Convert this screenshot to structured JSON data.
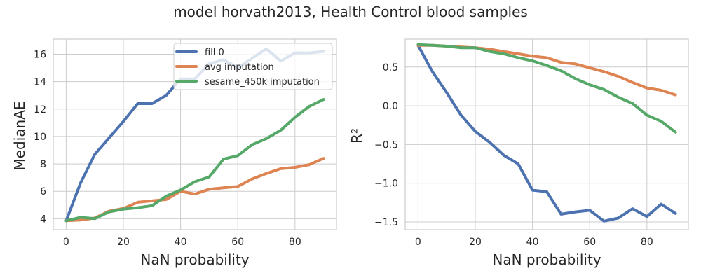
{
  "figure": {
    "title": "model horvath2013, Health Control blood samples"
  },
  "chart_data": [
    {
      "type": "line",
      "title": "",
      "xlabel": "NaN probability",
      "ylabel": "MedianAE",
      "xlim": [
        -4.5,
        94.5
      ],
      "ylim": [
        3.2,
        17.1
      ],
      "xticks": [
        0,
        20,
        40,
        60,
        80
      ],
      "yticks": [
        4,
        6,
        8,
        10,
        12,
        14,
        16
      ],
      "grid": true,
      "legend": "top-right",
      "x": [
        0,
        5,
        10,
        15,
        20,
        25,
        30,
        35,
        40,
        45,
        50,
        55,
        60,
        65,
        70,
        75,
        80,
        85,
        90
      ],
      "series": [
        {
          "name": "fill 0",
          "color": "#4c72b0",
          "values": [
            3.85,
            6.6,
            8.7,
            9.9,
            11.1,
            12.4,
            12.4,
            13.0,
            14.2,
            14.2,
            15.3,
            15.6,
            15.0,
            15.7,
            16.4,
            15.5,
            16.1,
            16.1,
            16.2
          ]
        },
        {
          "name": "avg imputation",
          "color": "#dd8452",
          "values": [
            3.85,
            3.9,
            4.05,
            4.55,
            4.75,
            5.2,
            5.3,
            5.4,
            6.0,
            5.8,
            6.15,
            6.25,
            6.35,
            6.9,
            7.3,
            7.65,
            7.75,
            7.95,
            8.4
          ]
        },
        {
          "name": "sesame_450k imputation",
          "color": "#55a868",
          "values": [
            3.85,
            4.1,
            4.0,
            4.5,
            4.7,
            4.8,
            4.95,
            5.65,
            6.1,
            6.7,
            7.05,
            8.35,
            8.6,
            9.4,
            9.85,
            10.45,
            11.4,
            12.2,
            12.7
          ]
        }
      ]
    },
    {
      "type": "line",
      "title": "",
      "xlabel": "NaN probability",
      "ylabel": "R²",
      "xlim": [
        -4.5,
        94.5
      ],
      "ylim": [
        -1.6,
        0.86
      ],
      "xticks": [
        0,
        20,
        40,
        60,
        80
      ],
      "yticks": [
        -1.5,
        -1.0,
        -0.5,
        0.0,
        0.5
      ],
      "ytick_labels": [
        "−1.5",
        "−1.0",
        "−0.5",
        "0.0",
        "0.5"
      ],
      "grid": true,
      "legend": "",
      "x": [
        0,
        5,
        10,
        15,
        20,
        25,
        30,
        35,
        40,
        45,
        50,
        55,
        60,
        65,
        70,
        75,
        80,
        85,
        90
      ],
      "series": [
        {
          "name": "fill 0",
          "color": "#4c72b0",
          "values": [
            0.78,
            0.44,
            0.17,
            -0.12,
            -0.33,
            -0.47,
            -0.64,
            -0.75,
            -1.09,
            -1.11,
            -1.4,
            -1.37,
            -1.35,
            -1.49,
            -1.45,
            -1.33,
            -1.43,
            -1.27,
            -1.39
          ]
        },
        {
          "name": "avg imputation",
          "color": "#dd8452",
          "values": [
            0.78,
            0.78,
            0.77,
            0.76,
            0.75,
            0.73,
            0.7,
            0.67,
            0.64,
            0.62,
            0.56,
            0.54,
            0.49,
            0.44,
            0.38,
            0.3,
            0.23,
            0.2,
            0.14
          ]
        },
        {
          "name": "sesame_450k imputation",
          "color": "#55a868",
          "values": [
            0.79,
            0.78,
            0.77,
            0.75,
            0.75,
            0.7,
            0.67,
            0.62,
            0.58,
            0.52,
            0.45,
            0.35,
            0.27,
            0.21,
            0.11,
            0.03,
            -0.12,
            -0.2,
            -0.34
          ]
        }
      ]
    }
  ]
}
